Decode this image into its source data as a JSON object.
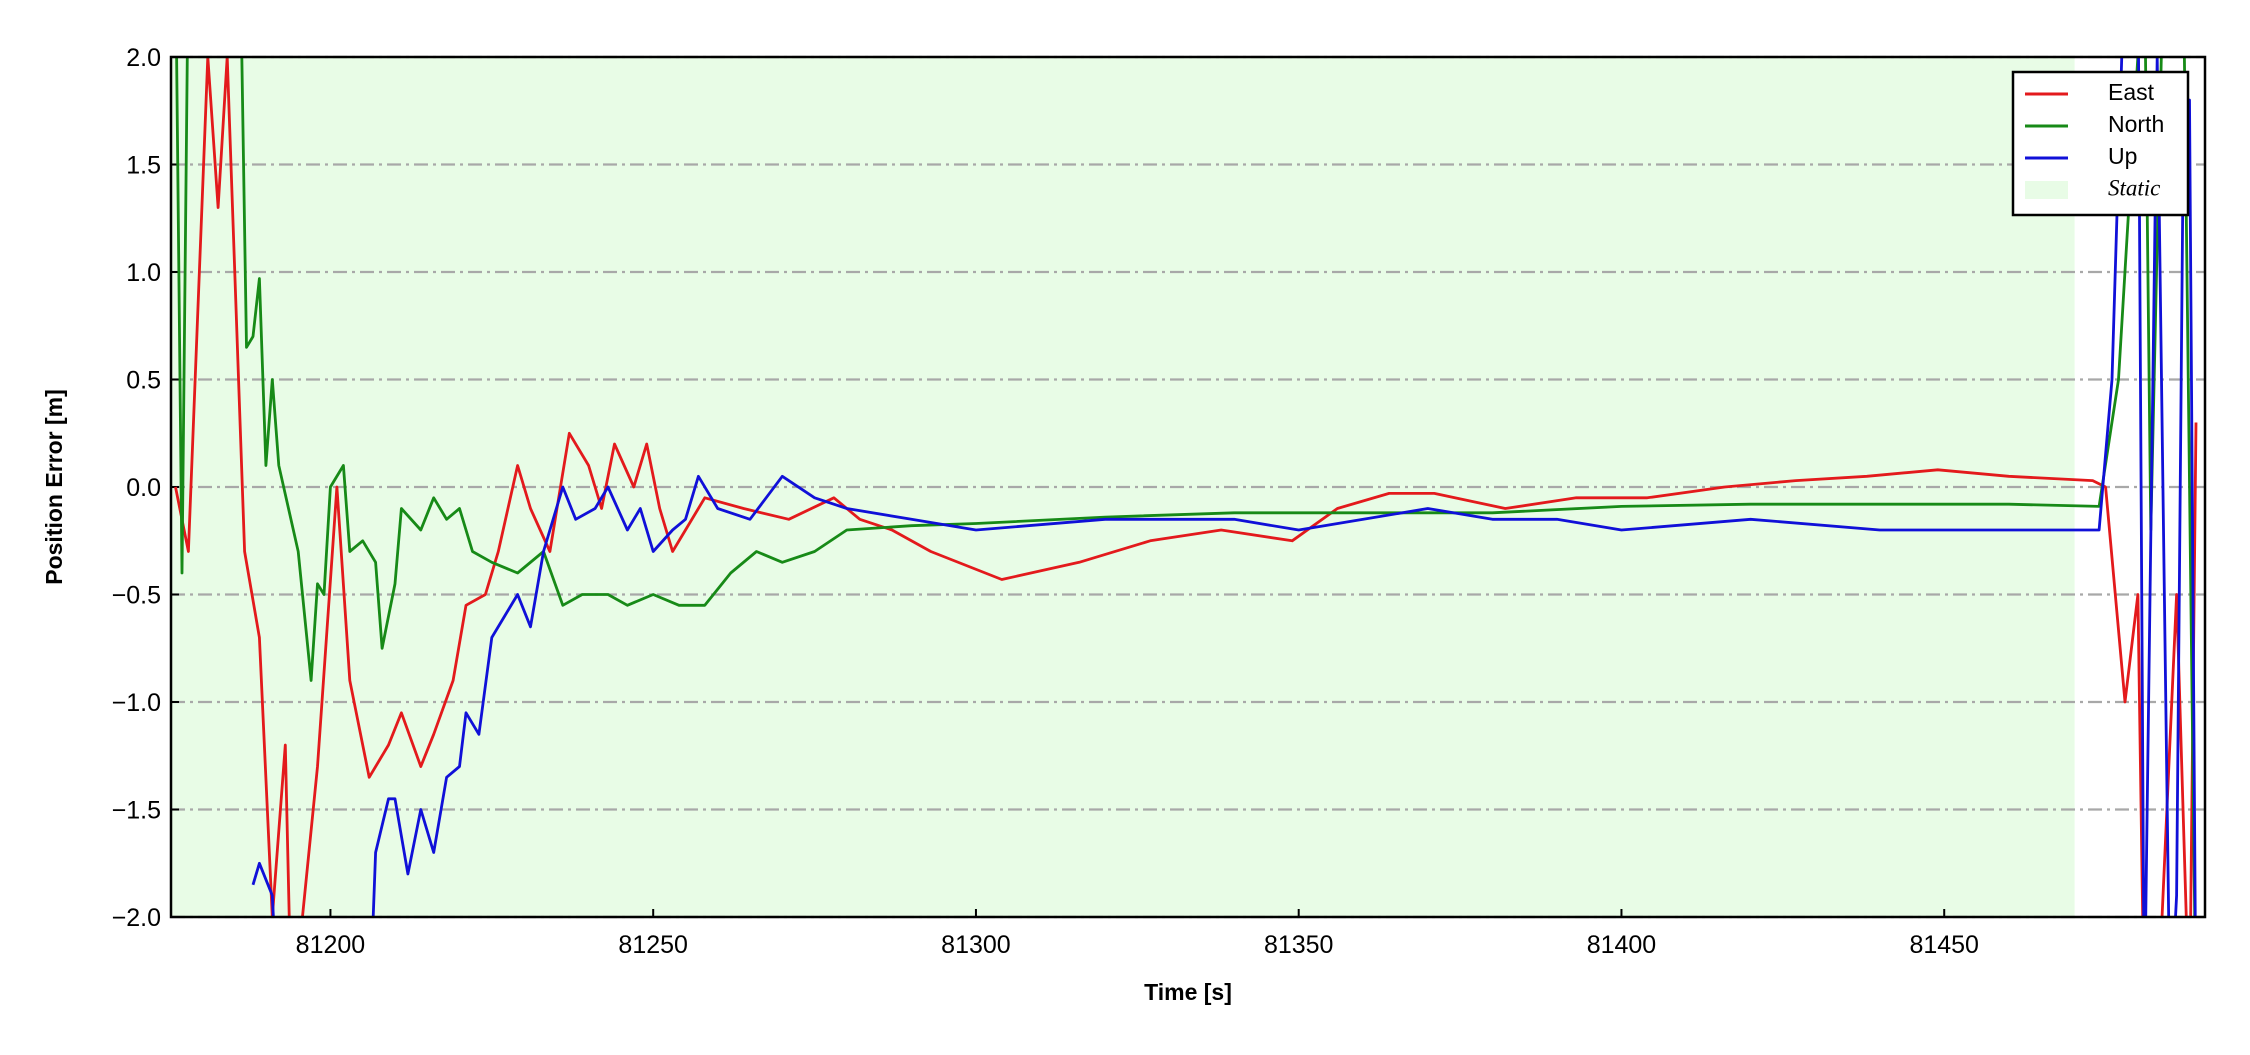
{
  "chart_data": {
    "type": "line",
    "xlabel": "Time [s]",
    "ylabel": "Position Error [m]",
    "xlim": [
      81175.3,
      81490.4
    ],
    "ylim": [
      -2.0,
      2.0
    ],
    "xticks": [
      81200,
      81250,
      81300,
      81350,
      81400,
      81450
    ],
    "yticks": [
      {
        "value": -2.0,
        "label": "−2.0"
      },
      {
        "value": -1.5,
        "label": "−1.5"
      },
      {
        "value": -1.0,
        "label": "−1.0"
      },
      {
        "value": -0.5,
        "label": "−0.5"
      },
      {
        "value": 0.0,
        "label": "0.0"
      },
      {
        "value": 0.5,
        "label": "0.5"
      },
      {
        "value": 1.0,
        "label": "1.0"
      },
      {
        "value": 1.5,
        "label": "1.5"
      },
      {
        "value": 2.0,
        "label": "2.0"
      }
    ],
    "grid": true,
    "legend": "upper right",
    "static": {
      "name": "Static",
      "color": "#e8fce6",
      "span": [
        81175.3,
        81470.2
      ]
    },
    "series": [
      {
        "name": "East",
        "color": "#e31a1c",
        "x": [
          81176,
          81178,
          81181,
          81182.6,
          81184,
          81186.7,
          81189,
          81191,
          81193,
          81194,
          81198,
          81201,
          81203,
          81206,
          81209,
          81211,
          81214,
          81216,
          81219,
          81221,
          81224,
          81226,
          81229,
          81231,
          81234,
          81237,
          81240,
          81242,
          81244,
          81247,
          81249,
          81251,
          81253,
          81255,
          81258,
          81264,
          81271,
          81278,
          81282,
          81287,
          81293,
          81304,
          81316,
          81327,
          81338,
          81349,
          81356,
          81364,
          81371,
          81382,
          81393,
          81404,
          81416,
          81427,
          81438,
          81449,
          81460,
          81473,
          81475,
          81478,
          81480,
          81481,
          81483,
          81486,
          81488,
          81489
        ],
        "values": [
          0.0,
          -0.3,
          2.0,
          1.3,
          2.0,
          -0.3,
          -0.7,
          -2.0,
          -1.2,
          -2.5,
          -1.3,
          0.0,
          -0.9,
          -1.35,
          -1.2,
          -1.05,
          -1.3,
          -1.15,
          -0.9,
          -0.55,
          -0.5,
          -0.3,
          0.1,
          -0.1,
          -0.3,
          0.25,
          0.1,
          -0.1,
          0.2,
          0.0,
          0.2,
          -0.1,
          -0.3,
          -0.2,
          -0.05,
          -0.1,
          -0.15,
          -0.05,
          -0.15,
          -0.2,
          -0.3,
          -0.43,
          -0.35,
          -0.25,
          -0.2,
          -0.25,
          -0.1,
          -0.03,
          -0.03,
          -0.1,
          -0.05,
          -0.05,
          0.0,
          0.03,
          0.05,
          0.08,
          0.05,
          0.03,
          0.0,
          -1.0,
          -0.5,
          -2.5,
          -2.5,
          -0.5,
          -2.5,
          0.3
        ]
      },
      {
        "name": "North",
        "color": "#178a17",
        "x": [
          81176,
          81177,
          81178,
          81186,
          81187,
          81188,
          81189,
          81190,
          81191,
          81192,
          81195,
          81197,
          81198,
          81199,
          81200,
          81202,
          81203,
          81205,
          81207,
          81208,
          81210,
          81211,
          81214,
          81216,
          81218,
          81220,
          81222,
          81225,
          81229,
          81233,
          81236,
          81239,
          81243,
          81246,
          81250,
          81254,
          81258,
          81262,
          81266,
          81270,
          81275,
          81280,
          81290,
          81300,
          81320,
          81340,
          81360,
          81380,
          81400,
          81420,
          81440,
          81460,
          81474,
          81477,
          81479,
          81481,
          81482,
          81484,
          81487,
          81489
        ],
        "values": [
          2.5,
          -0.4,
          2.5,
          2.5,
          0.65,
          0.7,
          0.97,
          0.1,
          0.5,
          0.1,
          -0.3,
          -0.9,
          -0.45,
          -0.5,
          0.0,
          0.1,
          -0.3,
          -0.25,
          -0.35,
          -0.75,
          -0.45,
          -0.1,
          -0.2,
          -0.05,
          -0.15,
          -0.1,
          -0.3,
          -0.35,
          -0.4,
          -0.3,
          -0.55,
          -0.5,
          -0.5,
          -0.55,
          -0.5,
          -0.55,
          -0.55,
          -0.4,
          -0.3,
          -0.35,
          -0.3,
          -0.2,
          -0.18,
          -0.17,
          -0.14,
          -0.12,
          -0.12,
          -0.12,
          -0.09,
          -0.08,
          -0.08,
          -0.08,
          -0.09,
          0.5,
          1.5,
          2.5,
          -0.2,
          2.5,
          2.5,
          -2.5
        ]
      },
      {
        "name": "Up",
        "color": "#1010d8",
        "x": [
          81188,
          81189,
          81191,
          81192,
          81200,
          81206,
          81207,
          81209,
          81210,
          81212,
          81214,
          81216,
          81218,
          81220,
          81221,
          81223,
          81225,
          81227,
          81229,
          81231,
          81233,
          81236,
          81238,
          81241,
          81243,
          81246,
          81248,
          81250,
          81253,
          81255,
          81257,
          81260,
          81265,
          81270,
          81275,
          81280,
          81290,
          81300,
          81320,
          81340,
          81350,
          81360,
          81370,
          81380,
          81390,
          81400,
          81420,
          81440,
          81460,
          81474,
          81476,
          81478,
          81480,
          81481,
          81483,
          81485,
          81486,
          81487,
          81488,
          81489
        ],
        "values": [
          -1.85,
          -1.75,
          -1.9,
          -2.5,
          null,
          -2.5,
          -1.7,
          -1.45,
          -1.45,
          -1.8,
          -1.5,
          -1.7,
          -1.35,
          -1.3,
          -1.05,
          -1.15,
          -0.7,
          -0.6,
          -0.5,
          -0.65,
          -0.3,
          0.0,
          -0.15,
          -0.1,
          0.0,
          -0.2,
          -0.1,
          -0.3,
          -0.2,
          -0.15,
          0.05,
          -0.1,
          -0.15,
          0.05,
          -0.05,
          -0.1,
          -0.15,
          -0.2,
          -0.15,
          -0.15,
          -0.2,
          -0.15,
          -0.1,
          -0.15,
          -0.15,
          -0.2,
          -0.15,
          -0.2,
          -0.2,
          -0.2,
          0.5,
          2.5,
          2.5,
          -2.5,
          2.0,
          -2.5,
          -1.9,
          1.5,
          1.8,
          -2.5
        ]
      }
    ]
  }
}
